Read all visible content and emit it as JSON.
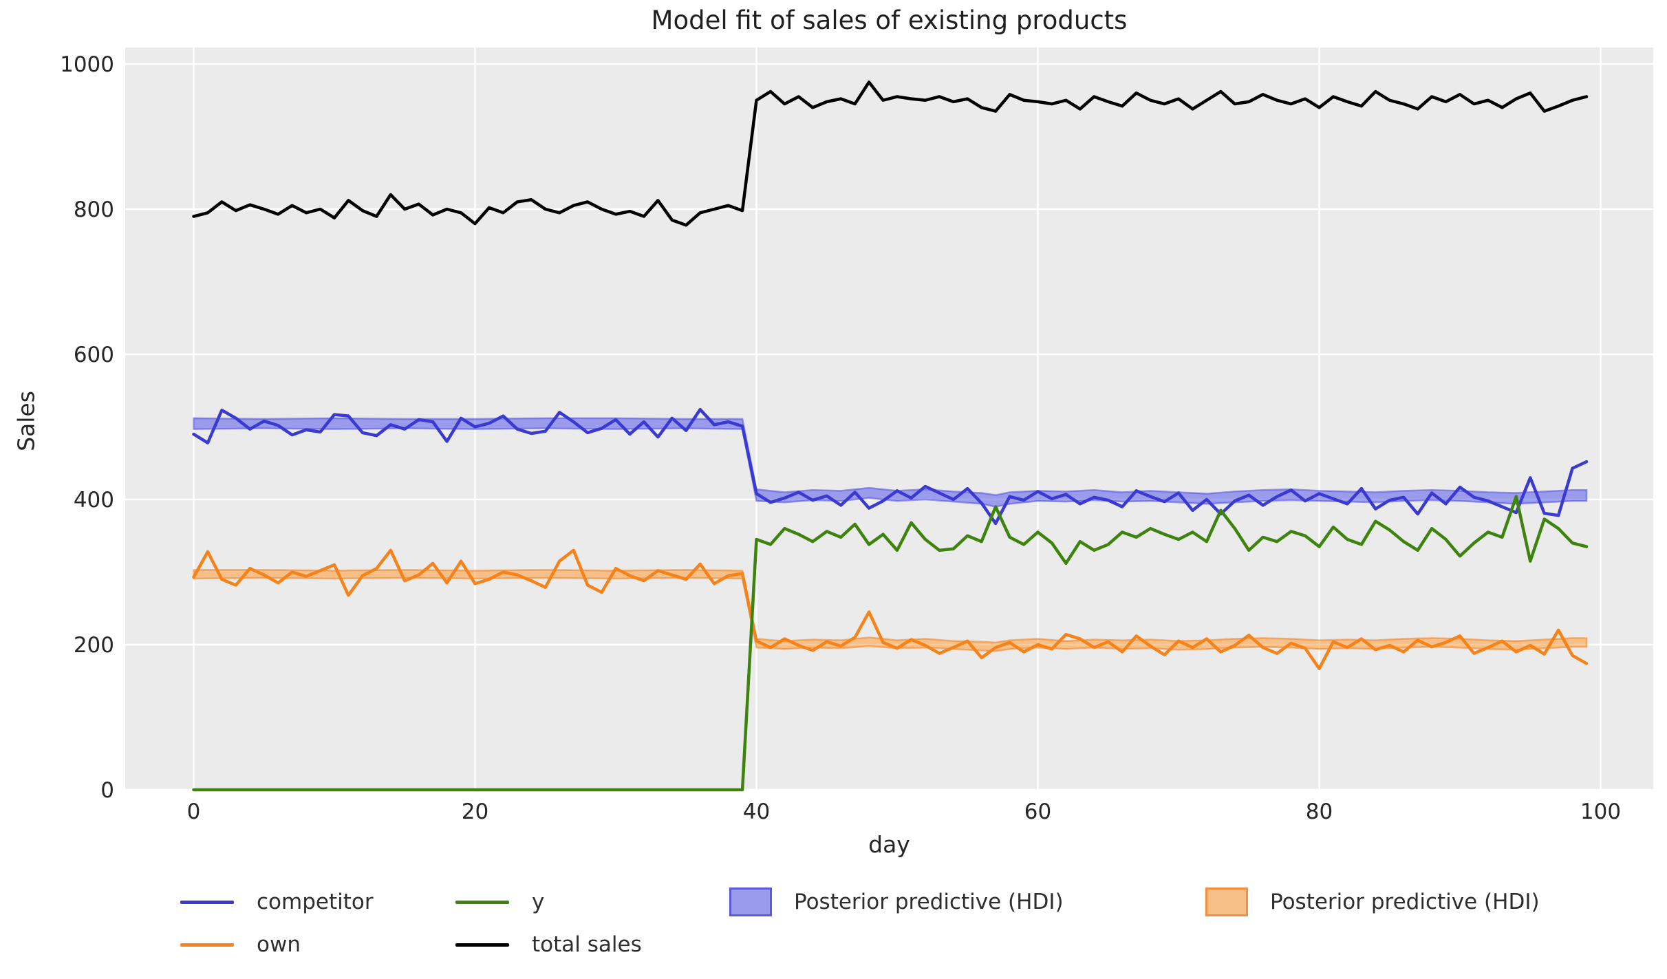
{
  "figure": {
    "title": "Model fit of sales of existing products",
    "xlabel": "day",
    "ylabel": "Sales"
  },
  "colors": {
    "figure_background": "#ffffff",
    "plot_background": "#ebebeb",
    "grid": "#ffffff",
    "text": "#262626",
    "competitor": "#3a3ad1",
    "own": "#f5831a",
    "y": "#3d830e",
    "total_sales": "#000000",
    "hdi_blue_fill": "rgba(90,90,235,0.55)",
    "hdi_blue_edge": "rgba(80,80,225,0.55)",
    "hdi_orange_fill": "rgba(255,150,40,0.5)",
    "hdi_orange_edge": "rgba(245,125,25,0.55)",
    "legend_patch_blue_fill": "#9b9bec",
    "legend_patch_blue_edge": "#5a5add",
    "legend_patch_orange_fill": "#f5bf88",
    "legend_patch_orange_edge": "#f09040"
  },
  "chart_data": {
    "type": "line",
    "title": "Model fit of sales of existing products",
    "xlabel": "day",
    "ylabel": "Sales",
    "grid": true,
    "legend_position": "below-axis, 4 columns, no frame",
    "xlim": [
      -5,
      104
    ],
    "ylim": [
      0,
      1023
    ],
    "xticks": [
      0,
      20,
      40,
      60,
      80,
      100
    ],
    "yticks": [
      0,
      200,
      400,
      600,
      800,
      1000
    ],
    "x": [
      0,
      1,
      2,
      3,
      4,
      5,
      6,
      7,
      8,
      9,
      10,
      11,
      12,
      13,
      14,
      15,
      16,
      17,
      18,
      19,
      20,
      21,
      22,
      23,
      24,
      25,
      26,
      27,
      28,
      29,
      30,
      31,
      32,
      33,
      34,
      35,
      36,
      37,
      38,
      39,
      40,
      41,
      42,
      43,
      44,
      45,
      46,
      47,
      48,
      49,
      50,
      51,
      52,
      53,
      54,
      55,
      56,
      57,
      58,
      59,
      60,
      61,
      62,
      63,
      64,
      65,
      66,
      67,
      68,
      69,
      70,
      71,
      72,
      73,
      74,
      75,
      76,
      77,
      78,
      79,
      80,
      81,
      82,
      83,
      84,
      85,
      86,
      87,
      88,
      89,
      90,
      91,
      92,
      93,
      94,
      95,
      96,
      97,
      98,
      99
    ],
    "series": [
      {
        "name": "competitor",
        "color_key": "competitor",
        "values": [
          490,
          478,
          523,
          512,
          497,
          508,
          502,
          489,
          496,
          493,
          517,
          515,
          492,
          488,
          503,
          497,
          510,
          507,
          480,
          512,
          500,
          505,
          515,
          497,
          491,
          494,
          520,
          507,
          492,
          498,
          510,
          490,
          507,
          486,
          512,
          495,
          524,
          503,
          507,
          501,
          408,
          396,
          402,
          410,
          399,
          405,
          392,
          410,
          388,
          398,
          412,
          402,
          418,
          409,
          400,
          415,
          395,
          367,
          404,
          399,
          411,
          401,
          407,
          394,
          403,
          399,
          390,
          412,
          404,
          397,
          409,
          385,
          400,
          380,
          398,
          406,
          392,
          404,
          413,
          398,
          408,
          401,
          394,
          415,
          387,
          399,
          403,
          380,
          409,
          394,
          417,
          403,
          398,
          390,
          382,
          430,
          381,
          378,
          443,
          452
        ]
      },
      {
        "name": "own",
        "color_key": "own",
        "values": [
          293,
          328,
          290,
          282,
          305,
          296,
          285,
          300,
          294,
          302,
          310,
          268,
          295,
          305,
          330,
          288,
          296,
          312,
          285,
          315,
          284,
          290,
          300,
          296,
          288,
          279,
          315,
          330,
          282,
          272,
          305,
          295,
          288,
          302,
          296,
          290,
          311,
          284,
          295,
          298,
          205,
          196,
          208,
          199,
          192,
          204,
          198,
          210,
          245,
          203,
          195,
          207,
          199,
          188,
          196,
          205,
          182,
          196,
          203,
          190,
          200,
          194,
          214,
          208,
          196,
          204,
          190,
          212,
          198,
          186,
          205,
          196,
          208,
          190,
          199,
          213,
          196,
          188,
          202,
          195,
          167,
          204,
          196,
          208,
          193,
          199,
          190,
          206,
          197,
          203,
          212,
          188,
          196,
          205,
          190,
          199,
          187,
          220,
          185,
          174
        ]
      },
      {
        "name": "y",
        "color_key": "y",
        "values": [
          0,
          0,
          0,
          0,
          0,
          0,
          0,
          0,
          0,
          0,
          0,
          0,
          0,
          0,
          0,
          0,
          0,
          0,
          0,
          0,
          0,
          0,
          0,
          0,
          0,
          0,
          0,
          0,
          0,
          0,
          0,
          0,
          0,
          0,
          0,
          0,
          0,
          0,
          0,
          0,
          345,
          338,
          360,
          352,
          342,
          356,
          348,
          366,
          338,
          352,
          330,
          368,
          345,
          330,
          332,
          350,
          342,
          390,
          348,
          338,
          355,
          340,
          312,
          342,
          330,
          338,
          355,
          348,
          360,
          352,
          345,
          355,
          342,
          385,
          360,
          330,
          348,
          342,
          356,
          350,
          335,
          362,
          345,
          338,
          370,
          358,
          342,
          330,
          360,
          345,
          322,
          340,
          355,
          348,
          404,
          315,
          373,
          360,
          340,
          335
        ]
      },
      {
        "name": "total sales",
        "color_key": "total_sales",
        "values": [
          790,
          795,
          810,
          798,
          806,
          800,
          793,
          805,
          795,
          800,
          788,
          812,
          798,
          790,
          820,
          800,
          807,
          792,
          800,
          795,
          780,
          802,
          795,
          810,
          813,
          800,
          795,
          805,
          810,
          800,
          793,
          797,
          790,
          812,
          785,
          778,
          795,
          800,
          805,
          798,
          950,
          962,
          945,
          955,
          940,
          948,
          952,
          945,
          975,
          950,
          955,
          952,
          950,
          955,
          948,
          952,
          940,
          935,
          958,
          950,
          948,
          945,
          950,
          938,
          955,
          948,
          942,
          960,
          950,
          945,
          952,
          938,
          950,
          962,
          945,
          948,
          958,
          950,
          945,
          952,
          940,
          955,
          948,
          942,
          962,
          950,
          945,
          938,
          955,
          948,
          958,
          945,
          950,
          940,
          952,
          960,
          935,
          942,
          950,
          955
        ]
      }
    ],
    "bands": [
      {
        "name": "Posterior predictive (HDI)",
        "fill_key": "hdi_blue_fill",
        "edge_key": "hdi_blue_edge",
        "x": [
          0,
          5,
          10,
          15,
          20,
          25,
          30,
          35,
          39,
          40,
          42,
          44,
          46,
          48,
          50,
          52,
          54,
          56,
          57,
          58,
          60,
          62,
          64,
          66,
          68,
          70,
          72,
          74,
          76,
          78,
          80,
          82,
          84,
          86,
          88,
          90,
          92,
          94,
          96,
          98,
          99
        ],
        "lo": [
          497,
          498,
          497,
          498,
          497,
          498,
          497,
          498,
          497,
          398,
          396,
          399,
          398,
          402,
          398,
          400,
          397,
          394,
          390,
          394,
          398,
          397,
          399,
          397,
          398,
          396,
          394,
          396,
          398,
          399,
          398,
          397,
          396,
          398,
          399,
          398,
          396,
          394,
          396,
          398,
          398
        ],
        "hi": [
          512,
          511,
          512,
          511,
          511,
          512,
          512,
          511,
          511,
          414,
          410,
          413,
          412,
          416,
          412,
          414,
          411,
          409,
          406,
          410,
          412,
          411,
          413,
          410,
          412,
          410,
          408,
          411,
          413,
          414,
          412,
          411,
          410,
          412,
          413,
          412,
          410,
          409,
          411,
          413,
          413
        ]
      },
      {
        "name": "Posterior predictive (HDI)",
        "fill_key": "hdi_orange_fill",
        "edge_key": "hdi_orange_edge",
        "x": [
          0,
          5,
          10,
          15,
          20,
          25,
          30,
          35,
          39,
          40,
          42,
          44,
          46,
          48,
          50,
          52,
          54,
          56,
          57,
          58,
          60,
          62,
          64,
          66,
          68,
          70,
          72,
          74,
          76,
          78,
          80,
          82,
          84,
          86,
          88,
          90,
          92,
          94,
          96,
          98,
          99
        ],
        "lo": [
          291,
          292,
          291,
          292,
          291,
          292,
          291,
          292,
          291,
          196,
          194,
          196,
          195,
          198,
          195,
          196,
          194,
          192,
          191,
          194,
          196,
          194,
          196,
          194,
          195,
          193,
          194,
          196,
          197,
          196,
          194,
          195,
          194,
          196,
          197,
          196,
          194,
          193,
          195,
          197,
          197
        ],
        "hi": [
          303,
          303,
          302,
          303,
          302,
          303,
          302,
          303,
          302,
          208,
          205,
          207,
          206,
          210,
          206,
          208,
          205,
          204,
          203,
          206,
          208,
          205,
          207,
          206,
          207,
          205,
          206,
          208,
          209,
          208,
          206,
          207,
          206,
          208,
          209,
          208,
          206,
          205,
          207,
          209,
          209
        ]
      }
    ],
    "legend": [
      {
        "label": "competitor",
        "type": "line",
        "color_key": "competitor"
      },
      {
        "label": "own",
        "type": "line",
        "color_key": "own"
      },
      {
        "label": "y",
        "type": "line",
        "color_key": "y"
      },
      {
        "label": "total sales",
        "type": "line",
        "color_key": "total_sales"
      },
      {
        "label": "Posterior predictive (HDI)",
        "type": "patch",
        "fill_key": "legend_patch_blue_fill",
        "edge_key": "legend_patch_blue_edge"
      },
      {
        "label": "Posterior predictive (HDI)",
        "type": "patch",
        "fill_key": "legend_patch_orange_fill",
        "edge_key": "legend_patch_orange_edge"
      }
    ]
  }
}
